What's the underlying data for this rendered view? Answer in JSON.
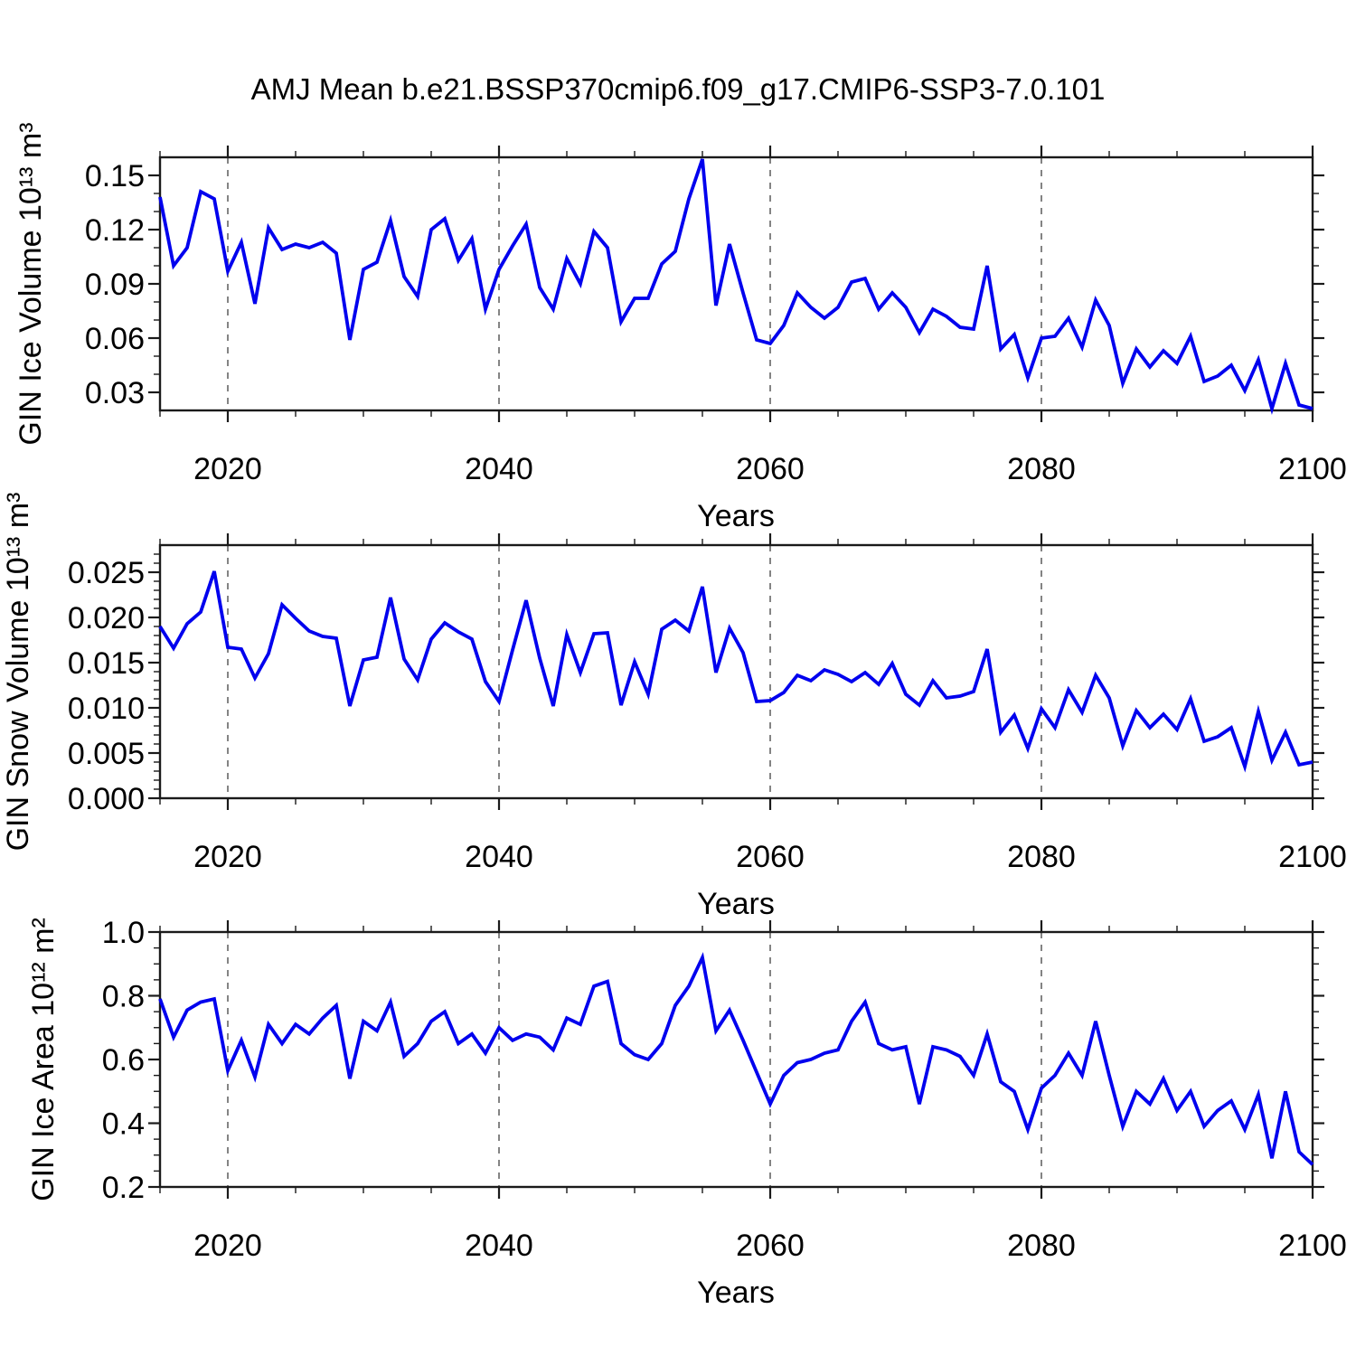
{
  "title": "AMJ Mean b.e21.BSSP370cmip6.f09_g17.CMIP6-SSP3-7.0.101",
  "colors": {
    "line": "#0000ee",
    "axis": "#1a1a1a",
    "grid": "#777777",
    "background": "#ffffff"
  },
  "chart_data": {
    "type": "line",
    "title": "AMJ Mean b.e21.BSSP370cmip6.f09_g17.CMIP6-SSP3-7.0.101",
    "xlabel": "Years",
    "xlim": [
      2015,
      2100
    ],
    "xticks": [
      2020,
      2040,
      2060,
      2080,
      2100
    ],
    "xtick_labels": [
      "2020",
      "2040",
      "2060",
      "2080",
      "2100"
    ],
    "xminor_step": 5,
    "grid_x": [
      2020,
      2040,
      2060,
      2080
    ],
    "legend": "none",
    "x": [
      2015,
      2016,
      2017,
      2018,
      2019,
      2020,
      2021,
      2022,
      2023,
      2024,
      2025,
      2026,
      2027,
      2028,
      2029,
      2030,
      2031,
      2032,
      2033,
      2034,
      2035,
      2036,
      2037,
      2038,
      2039,
      2040,
      2041,
      2042,
      2043,
      2044,
      2045,
      2046,
      2047,
      2048,
      2049,
      2050,
      2051,
      2052,
      2053,
      2054,
      2055,
      2056,
      2057,
      2058,
      2059,
      2060,
      2061,
      2062,
      2063,
      2064,
      2065,
      2066,
      2067,
      2068,
      2069,
      2070,
      2071,
      2072,
      2073,
      2074,
      2075,
      2076,
      2077,
      2078,
      2079,
      2080,
      2081,
      2082,
      2083,
      2084,
      2085,
      2086,
      2087,
      2088,
      2089,
      2090,
      2091,
      2092,
      2093,
      2094,
      2095,
      2096,
      2097,
      2098,
      2099,
      2100
    ],
    "series": [
      {
        "name": "GIN Ice Volume",
        "ylabel": "GIN Ice Volume 10¹³ m³",
        "ylim": [
          0.02,
          0.16
        ],
        "yticks": [
          0.03,
          0.06,
          0.09,
          0.12,
          0.15
        ],
        "ytick_labels": [
          "0.03",
          "0.06",
          "0.09",
          "0.12",
          "0.15"
        ],
        "yminor_step": 0.01,
        "values": [
          0.138,
          0.1,
          0.11,
          0.141,
          0.137,
          0.097,
          0.113,
          0.079,
          0.121,
          0.109,
          0.112,
          0.11,
          0.113,
          0.107,
          0.059,
          0.098,
          0.102,
          0.125,
          0.094,
          0.083,
          0.12,
          0.126,
          0.103,
          0.115,
          0.076,
          0.098,
          0.111,
          0.123,
          0.088,
          0.076,
          0.104,
          0.09,
          0.119,
          0.11,
          0.069,
          0.082,
          0.082,
          0.101,
          0.108,
          0.137,
          0.159,
          0.078,
          0.112,
          0.085,
          0.059,
          0.057,
          0.067,
          0.085,
          0.077,
          0.071,
          0.077,
          0.091,
          0.093,
          0.076,
          0.085,
          0.077,
          0.063,
          0.076,
          0.072,
          0.066,
          0.065,
          0.1,
          0.054,
          0.062,
          0.038,
          0.06,
          0.061,
          0.071,
          0.055,
          0.081,
          0.067,
          0.035,
          0.054,
          0.044,
          0.053,
          0.046,
          0.061,
          0.036,
          0.039,
          0.045,
          0.031,
          0.048,
          0.021,
          0.046,
          0.023,
          0.021
        ]
      },
      {
        "name": "GIN Snow Volume",
        "ylabel": "GIN Snow Volume 10¹³ m³",
        "ylim": [
          0.0,
          0.028
        ],
        "yticks": [
          0.0,
          0.005,
          0.01,
          0.015,
          0.02,
          0.025
        ],
        "ytick_labels": [
          "0.000",
          "0.005",
          "0.010",
          "0.015",
          "0.020",
          "0.025"
        ],
        "yminor_step": 0.001,
        "values": [
          0.019,
          0.0166,
          0.0193,
          0.0206,
          0.0251,
          0.0167,
          0.0165,
          0.0133,
          0.016,
          0.0214,
          0.0199,
          0.0185,
          0.0179,
          0.0177,
          0.0102,
          0.0153,
          0.0156,
          0.0222,
          0.0154,
          0.0131,
          0.0176,
          0.0194,
          0.0184,
          0.0176,
          0.0129,
          0.0107,
          0.0164,
          0.0219,
          0.0155,
          0.0102,
          0.0181,
          0.0139,
          0.0182,
          0.0183,
          0.0103,
          0.0151,
          0.0115,
          0.0187,
          0.0197,
          0.0185,
          0.0234,
          0.0139,
          0.0188,
          0.0161,
          0.0107,
          0.0108,
          0.0117,
          0.0136,
          0.013,
          0.0142,
          0.0137,
          0.0129,
          0.0139,
          0.0126,
          0.0149,
          0.0115,
          0.0103,
          0.013,
          0.0111,
          0.0113,
          0.0118,
          0.0165,
          0.0073,
          0.0092,
          0.0055,
          0.0099,
          0.0078,
          0.012,
          0.0095,
          0.0136,
          0.0111,
          0.0058,
          0.0097,
          0.0078,
          0.0093,
          0.0076,
          0.011,
          0.0063,
          0.0068,
          0.0078,
          0.0035,
          0.0096,
          0.0042,
          0.0073,
          0.0037,
          0.004
        ]
      },
      {
        "name": "GIN Ice Area",
        "ylabel": "GIN Ice Area 10¹² m²",
        "ylim": [
          0.2,
          1.0
        ],
        "yticks": [
          0.2,
          0.4,
          0.6,
          0.8,
          1.0
        ],
        "ytick_labels": [
          "0.2",
          "0.4",
          "0.6",
          "0.8",
          "1.0"
        ],
        "yminor_step": 0.05,
        "values": [
          0.79,
          0.67,
          0.755,
          0.78,
          0.79,
          0.565,
          0.66,
          0.545,
          0.71,
          0.65,
          0.71,
          0.68,
          0.73,
          0.77,
          0.54,
          0.72,
          0.69,
          0.78,
          0.61,
          0.65,
          0.72,
          0.75,
          0.65,
          0.68,
          0.62,
          0.7,
          0.66,
          0.68,
          0.67,
          0.63,
          0.73,
          0.71,
          0.83,
          0.845,
          0.65,
          0.615,
          0.6,
          0.65,
          0.77,
          0.83,
          0.92,
          0.69,
          0.755,
          0.66,
          0.56,
          0.46,
          0.55,
          0.59,
          0.6,
          0.62,
          0.63,
          0.72,
          0.78,
          0.65,
          0.63,
          0.64,
          0.46,
          0.64,
          0.63,
          0.61,
          0.55,
          0.68,
          0.53,
          0.5,
          0.38,
          0.51,
          0.55,
          0.62,
          0.55,
          0.72,
          0.55,
          0.39,
          0.5,
          0.46,
          0.54,
          0.44,
          0.5,
          0.39,
          0.44,
          0.47,
          0.38,
          0.49,
          0.29,
          0.5,
          0.31,
          0.27
        ]
      }
    ]
  }
}
